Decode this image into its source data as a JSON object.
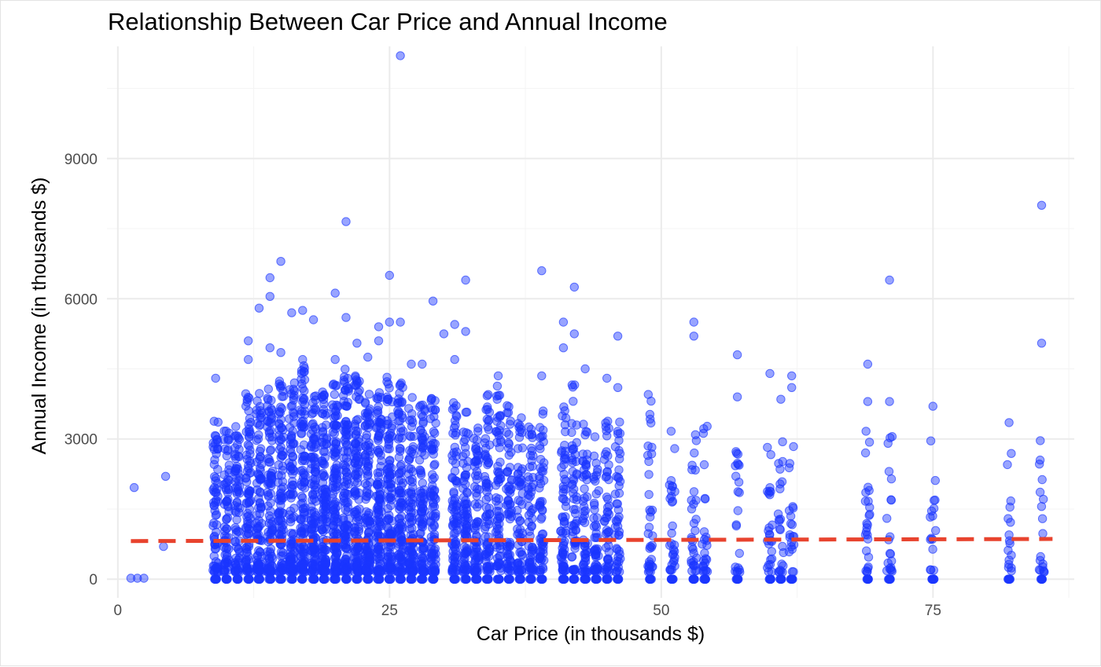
{
  "chart_data": {
    "type": "scatter",
    "title": "Relationship Between Car Price and Annual Income",
    "xlabel": "Car Price (in thousands $)",
    "ylabel": "Annual Income (in thousands $)",
    "xlim": [
      -1,
      88
    ],
    "ylim": [
      -400,
      11400
    ],
    "x_ticks": [
      0,
      25,
      50,
      75
    ],
    "x_tick_labels": [
      "0",
      "25",
      "50",
      "75"
    ],
    "y_ticks": [
      0,
      3000,
      6000,
      9000
    ],
    "y_tick_labels": [
      "0",
      "3000",
      "6000",
      "9000"
    ],
    "grid": true,
    "legend": "none",
    "point_color": "#1a35ff",
    "point_opacity": 0.45,
    "trend_line_color": "#e8432e",
    "trend_line": {
      "type": "linear",
      "x": [
        1.2,
        86
      ],
      "y": [
        815,
        860
      ]
    },
    "series": [
      {
        "points": [
          [
            1.2,
            20
          ],
          [
            1.8,
            20
          ],
          [
            2.4,
            20
          ],
          [
            1.5,
            1960
          ],
          [
            4.4,
            2200
          ],
          [
            4.2,
            700
          ],
          [
            26,
            11200
          ],
          [
            85,
            8000
          ],
          [
            21,
            7650
          ],
          [
            15,
            6800
          ],
          [
            14,
            6450
          ],
          [
            14,
            6050
          ],
          [
            20,
            6120
          ],
          [
            25,
            6500
          ],
          [
            39,
            6600
          ],
          [
            32,
            6400
          ],
          [
            42,
            6250
          ],
          [
            71,
            6400
          ],
          [
            13,
            5800
          ],
          [
            16,
            5700
          ],
          [
            17,
            5750
          ],
          [
            18,
            5550
          ],
          [
            21,
            5600
          ],
          [
            24,
            5400
          ],
          [
            25,
            5500
          ],
          [
            26,
            5500
          ],
          [
            29,
            5950
          ],
          [
            31,
            5450
          ],
          [
            32,
            5300
          ],
          [
            30,
            5250
          ],
          [
            41,
            5500
          ],
          [
            42,
            5250
          ],
          [
            46,
            5200
          ],
          [
            53,
            5500
          ],
          [
            53,
            5200
          ],
          [
            57,
            4800
          ],
          [
            60,
            4400
          ],
          [
            62,
            4350
          ],
          [
            62,
            4100
          ],
          [
            69,
            4600
          ],
          [
            85,
            5050
          ],
          [
            12,
            5100
          ],
          [
            12,
            4700
          ],
          [
            14,
            4950
          ],
          [
            15,
            4850
          ],
          [
            17,
            4700
          ],
          [
            20,
            4700
          ],
          [
            22,
            5050
          ],
          [
            23,
            4750
          ],
          [
            24,
            5100
          ],
          [
            27,
            4600
          ],
          [
            28,
            4600
          ],
          [
            31,
            4700
          ],
          [
            35,
            4350
          ],
          [
            39,
            4350
          ],
          [
            41,
            4950
          ],
          [
            43,
            4500
          ],
          [
            45,
            4300
          ],
          [
            46,
            4100
          ],
          [
            57,
            3900
          ],
          [
            61,
            3850
          ],
          [
            75,
            3700
          ],
          [
            82,
            3350
          ],
          [
            9,
            4300
          ],
          [
            71,
            3800
          ],
          [
            69,
            3800
          ]
        ],
        "clusters": [
          {
            "x": 9,
            "n": 70,
            "max": 3400
          },
          {
            "x": 10,
            "n": 70,
            "max": 3200
          },
          {
            "x": 11,
            "n": 75,
            "max": 3300
          },
          {
            "x": 12,
            "n": 90,
            "max": 4000
          },
          {
            "x": 13,
            "n": 95,
            "max": 4000
          },
          {
            "x": 14,
            "n": 100,
            "max": 4200
          },
          {
            "x": 15,
            "n": 100,
            "max": 4300
          },
          {
            "x": 16,
            "n": 110,
            "max": 4200
          },
          {
            "x": 17,
            "n": 115,
            "max": 4600
          },
          {
            "x": 18,
            "n": 120,
            "max": 4000
          },
          {
            "x": 19,
            "n": 125,
            "max": 4100
          },
          {
            "x": 20,
            "n": 130,
            "max": 4200
          },
          {
            "x": 21,
            "n": 130,
            "max": 4500
          },
          {
            "x": 22,
            "n": 125,
            "max": 4500
          },
          {
            "x": 23,
            "n": 120,
            "max": 4000
          },
          {
            "x": 24,
            "n": 115,
            "max": 4000
          },
          {
            "x": 25,
            "n": 115,
            "max": 4500
          },
          {
            "x": 26,
            "n": 110,
            "max": 4200
          },
          {
            "x": 27,
            "n": 100,
            "max": 3900
          },
          {
            "x": 28,
            "n": 95,
            "max": 3800
          },
          {
            "x": 29,
            "n": 90,
            "max": 3900
          },
          {
            "x": 31,
            "n": 85,
            "max": 3900
          },
          {
            "x": 32,
            "n": 80,
            "max": 3600
          },
          {
            "x": 33,
            "n": 75,
            "max": 3300
          },
          {
            "x": 34,
            "n": 75,
            "max": 4000
          },
          {
            "x": 35,
            "n": 70,
            "max": 4200
          },
          {
            "x": 36,
            "n": 65,
            "max": 3800
          },
          {
            "x": 37,
            "n": 60,
            "max": 3800
          },
          {
            "x": 38,
            "n": 60,
            "max": 3600
          },
          {
            "x": 39,
            "n": 60,
            "max": 3600
          },
          {
            "x": 41,
            "n": 65,
            "max": 3700
          },
          {
            "x": 42,
            "n": 60,
            "max": 4200
          },
          {
            "x": 43,
            "n": 55,
            "max": 3400
          },
          {
            "x": 44,
            "n": 50,
            "max": 3200
          },
          {
            "x": 45,
            "n": 50,
            "max": 3600
          },
          {
            "x": 46,
            "n": 45,
            "max": 3400
          },
          {
            "x": 49,
            "n": 35,
            "max": 4000
          },
          {
            "x": 51,
            "n": 30,
            "max": 3700
          },
          {
            "x": 53,
            "n": 30,
            "max": 3100
          },
          {
            "x": 54,
            "n": 25,
            "max": 3300
          },
          {
            "x": 57,
            "n": 22,
            "max": 2900
          },
          {
            "x": 60,
            "n": 25,
            "max": 3200
          },
          {
            "x": 61,
            "n": 22,
            "max": 3100
          },
          {
            "x": 62,
            "n": 20,
            "max": 3200
          },
          {
            "x": 69,
            "n": 25,
            "max": 3400
          },
          {
            "x": 71,
            "n": 20,
            "max": 3100
          },
          {
            "x": 75,
            "n": 16,
            "max": 3000
          },
          {
            "x": 82,
            "n": 16,
            "max": 2800
          },
          {
            "x": 85,
            "n": 18,
            "max": 3000
          }
        ]
      }
    ]
  }
}
